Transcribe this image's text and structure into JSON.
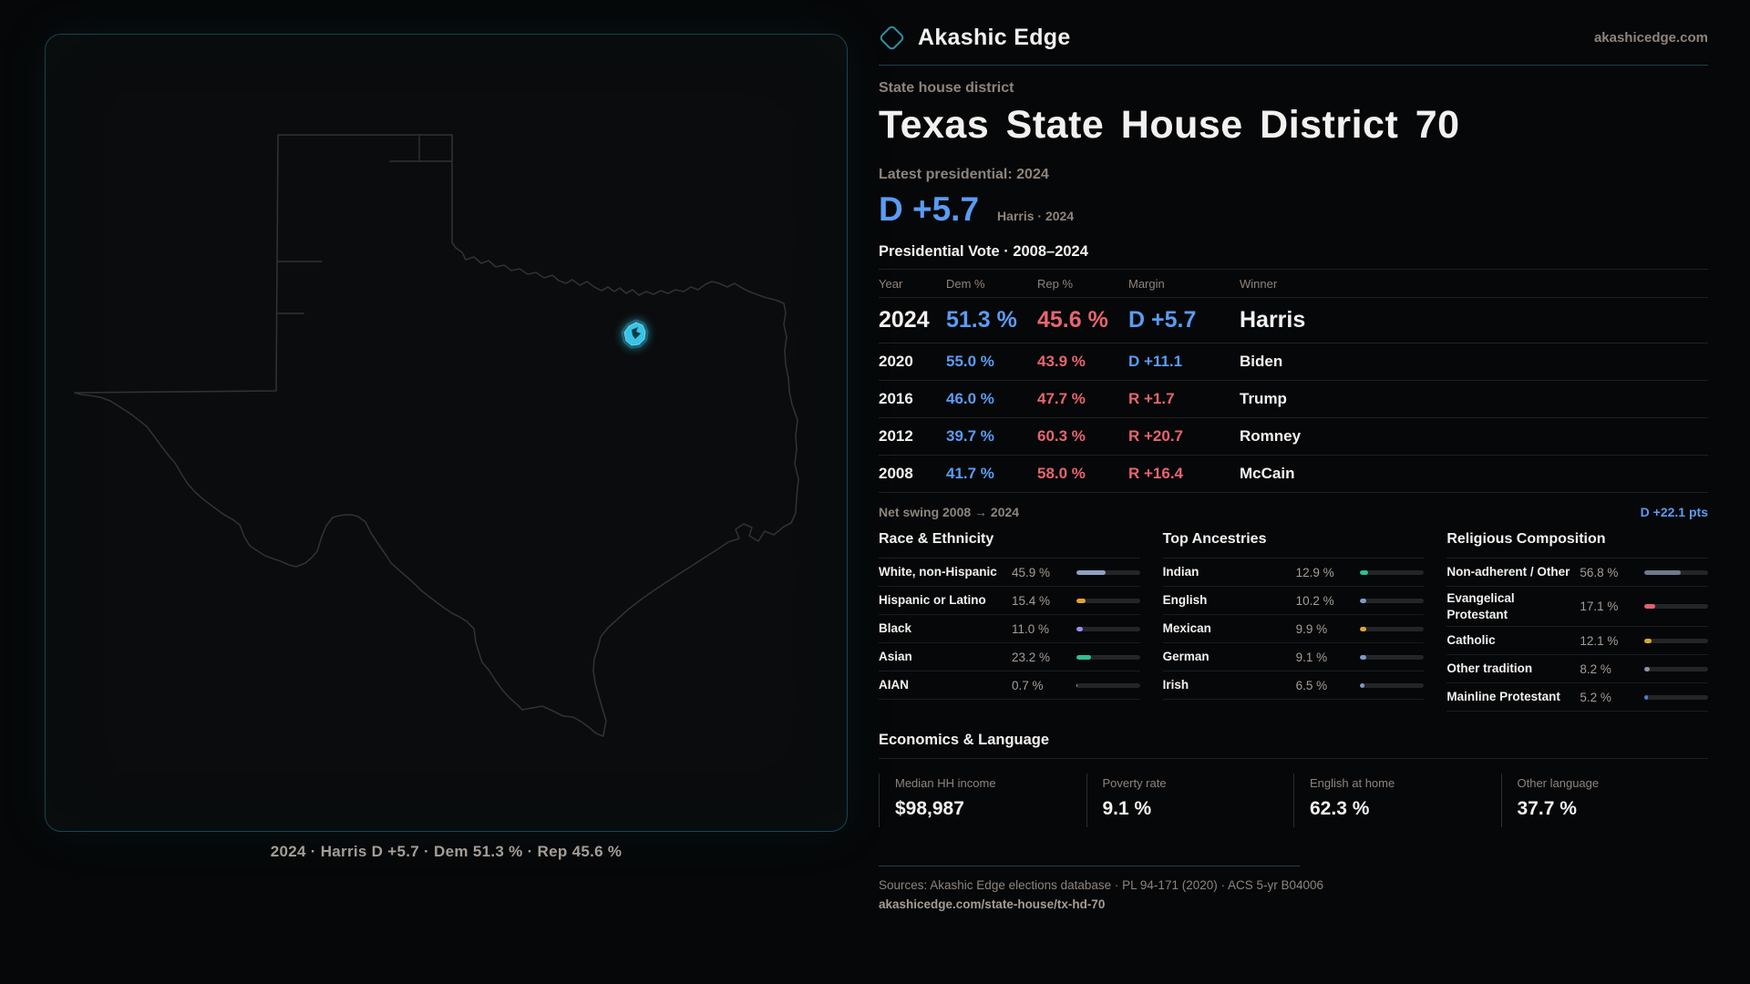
{
  "brand": {
    "name": "Akashic Edge",
    "domain": "akashicedge.com"
  },
  "page": {
    "kicker": "State house district",
    "title": "Texas State House District 70",
    "latest_label": "Latest presidential: 2024",
    "headline_margin": "D +5.7",
    "headline_detail": "Harris · 2024"
  },
  "map": {
    "caption": "2024 · Harris D +5.7 · Dem 51.3 % · Rep 45.6 %",
    "region": "Texas",
    "district": "State House District 70"
  },
  "table": {
    "title": "Presidential Vote · 2008–2024",
    "columns": [
      "Year",
      "Dem %",
      "Rep %",
      "Margin",
      "Winner"
    ],
    "rows": [
      {
        "year": "2024",
        "dem": "51.3 %",
        "rep": "45.6 %",
        "margin": "D +5.7",
        "margin_color": "#5a9cf3",
        "winner": "Harris"
      },
      {
        "year": "2020",
        "dem": "55.0 %",
        "rep": "43.9 %",
        "margin": "D +11.1",
        "margin_color": "#5a9cf3",
        "winner": "Biden"
      },
      {
        "year": "2016",
        "dem": "46.0 %",
        "rep": "47.7 %",
        "margin": "R +1.7",
        "margin_color": "#e66570",
        "winner": "Trump"
      },
      {
        "year": "2012",
        "dem": "39.7 %",
        "rep": "60.3 %",
        "margin": "R +20.7",
        "margin_color": "#e66570",
        "winner": "Romney"
      },
      {
        "year": "2008",
        "dem": "41.7 %",
        "rep": "58.0 %",
        "margin": "R +16.4",
        "margin_color": "#e66570",
        "winner": "McCain"
      }
    ]
  },
  "net_swing": {
    "label": "Net swing 2008 → 2024",
    "value": "D +22.1 pts"
  },
  "chart_data": [
    {
      "type": "bar",
      "title": "Race & Ethnicity",
      "categories": [
        "White, non-Hispanic",
        "Hispanic or Latino",
        "Black",
        "Asian",
        "AIAN"
      ],
      "values": [
        45.9,
        15.4,
        11.0,
        23.2,
        0.7
      ]
    },
    {
      "type": "bar",
      "title": "Top Ancestries",
      "categories": [
        "Indian",
        "English",
        "Mexican",
        "German",
        "Irish"
      ],
      "values": [
        12.9,
        10.2,
        9.9,
        9.1,
        6.5
      ]
    },
    {
      "type": "bar",
      "title": "Religious Composition",
      "categories": [
        "Non-adherent / Other",
        "Evangelical Protestant",
        "Catholic",
        "Other tradition",
        "Mainline Protestant"
      ],
      "values": [
        56.8,
        17.1,
        12.1,
        8.2,
        5.2
      ]
    }
  ],
  "demographics": [
    {
      "title": "Race & Ethnicity",
      "rows": [
        {
          "label": "White, non-Hispanic",
          "value": "45.9 %",
          "pct": 45.9,
          "color": "#8fa2c4"
        },
        {
          "label": "Hispanic or Latino",
          "value": "15.4 %",
          "pct": 15.4,
          "color": "#e3a23b"
        },
        {
          "label": "Black",
          "value": "11.0 %",
          "pct": 11.0,
          "color": "#9e8bf0"
        },
        {
          "label": "Asian",
          "value": "23.2 %",
          "pct": 23.2,
          "color": "#2fbe8f"
        },
        {
          "label": "AIAN",
          "value": "0.7 %",
          "pct": 0.7,
          "color": "#8fa2c4"
        }
      ]
    },
    {
      "title": "Top Ancestries",
      "rows": [
        {
          "label": "Indian",
          "value": "12.9 %",
          "pct": 12.9,
          "color": "#2fbe8f"
        },
        {
          "label": "English",
          "value": "10.2 %",
          "pct": 10.2,
          "color": "#7e99c6"
        },
        {
          "label": "Mexican",
          "value": "9.9 %",
          "pct": 9.9,
          "color": "#e3a23b"
        },
        {
          "label": "German",
          "value": "9.1 %",
          "pct": 9.1,
          "color": "#7e99c6"
        },
        {
          "label": "Irish",
          "value": "6.5 %",
          "pct": 6.5,
          "color": "#7e99c6"
        }
      ]
    },
    {
      "title": "Religious Composition",
      "rows": [
        {
          "label": "Non-adherent / Other",
          "value": "56.8 %",
          "pct": 56.8,
          "color": "#6f7a8c"
        },
        {
          "label": "Evangelical Protestant",
          "value": "17.1 %",
          "pct": 17.1,
          "color": "#e0636b"
        },
        {
          "label": "Catholic",
          "value": "12.1 %",
          "pct": 12.1,
          "color": "#d9a832"
        },
        {
          "label": "Other tradition",
          "value": "8.2 %",
          "pct": 8.2,
          "color": "#8a93a3"
        },
        {
          "label": "Mainline Protestant",
          "value": "5.2 %",
          "pct": 5.2,
          "color": "#4a80d6"
        }
      ]
    }
  ],
  "economics": {
    "title": "Economics & Language",
    "stats": [
      {
        "label": "Median HH income",
        "value": "$98,987"
      },
      {
        "label": "Poverty rate",
        "value": "9.1 %"
      },
      {
        "label": "English at home",
        "value": "62.3 %"
      },
      {
        "label": "Other language",
        "value": "37.7 %"
      }
    ]
  },
  "footer": {
    "sources": "Sources: Akashic Edge elections database · PL 94-171 (2020) · ACS 5-yr B04006",
    "permalink": "akashicedge.com/state-house/tx-hd-70"
  },
  "colors": {
    "bg": "#060708",
    "panel-bg": "#0a0c0d",
    "panel-border": "#16454f",
    "dem": "#5a9cf3",
    "rep": "#e66570",
    "accent": "#2e8fa3",
    "district": "#37c4e6",
    "district-halo": "#1c6375",
    "map-outline": "#2f3233",
    "muted": "#8d847d",
    "muted2": "#a59d96",
    "text": "#f3f1ef",
    "divider": "#1e2021",
    "divider-teal": "#17454e",
    "bar-track": "#232527"
  }
}
